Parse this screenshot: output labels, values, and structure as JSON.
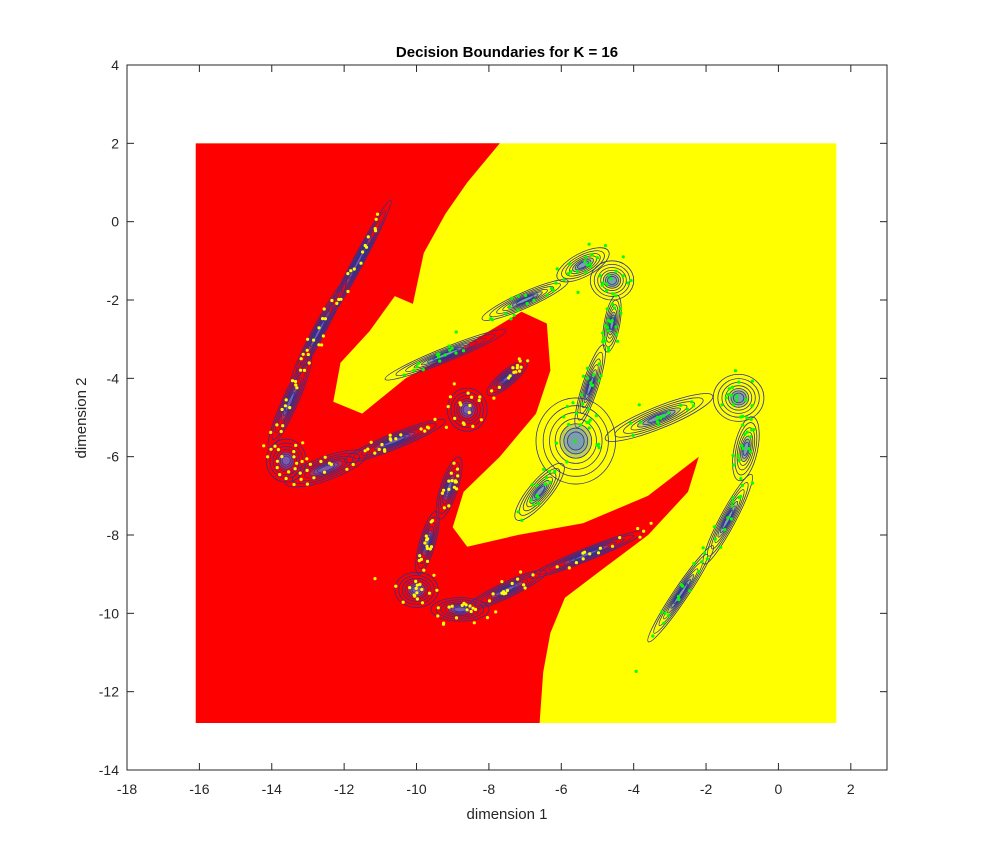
{
  "chart_data": {
    "type": "scatter",
    "title": "Decision Boundaries for K = 16",
    "xlabel": "dimension 1",
    "ylabel": "dimension 2",
    "xlim": [
      -18,
      3
    ],
    "ylim": [
      -14,
      4
    ],
    "x_ticks": [
      -18,
      -16,
      -14,
      -12,
      -10,
      -8,
      -6,
      -4,
      -2,
      0,
      2
    ],
    "y_ticks": [
      4,
      2,
      0,
      -2,
      -4,
      -6,
      -8,
      -10,
      -12,
      -14
    ],
    "x_tick_labels": [
      "-18",
      "-16",
      "-14",
      "-12",
      "-10",
      "-8",
      "-6",
      "-4",
      "-2",
      "0",
      "2"
    ],
    "y_tick_labels": [
      "4",
      "2",
      "0",
      "-2",
      "-4",
      "-6",
      "-8",
      "-10",
      "-12",
      "-14"
    ],
    "grid": false,
    "legend": "none",
    "colors": {
      "class_1_region": "#ff0000",
      "class_2_region": "#ffff00",
      "class_1_points": "#ffff00",
      "class_2_points": "#00ff00",
      "contours": "#30308c",
      "contour_fill": "#4a7cf0"
    },
    "decision_regions": {
      "extent_x": [
        -16.1,
        1.6
      ],
      "extent_y": [
        -12.8,
        2.0
      ],
      "boundary": [
        [
          -7.7,
          2.0
        ],
        [
          -8.6,
          1.0
        ],
        [
          -9.2,
          0.2
        ],
        [
          -9.8,
          -0.8
        ],
        [
          -10.1,
          -2.1
        ],
        [
          -10.6,
          -1.9
        ],
        [
          -11.3,
          -2.8
        ],
        [
          -12.1,
          -3.6
        ],
        [
          -12.3,
          -4.6
        ],
        [
          -11.5,
          -4.9
        ],
        [
          -10.3,
          -4.0
        ],
        [
          -8.9,
          -3.3
        ],
        [
          -7.1,
          -2.3
        ],
        [
          -6.4,
          -2.6
        ],
        [
          -6.3,
          -3.8
        ],
        [
          -6.7,
          -4.9
        ],
        [
          -7.7,
          -6.0
        ],
        [
          -8.7,
          -6.9
        ],
        [
          -9.0,
          -7.8
        ],
        [
          -8.6,
          -8.3
        ],
        [
          -7.2,
          -8.0
        ],
        [
          -5.4,
          -7.7
        ],
        [
          -3.6,
          -7.0
        ],
        [
          -2.2,
          -6.0
        ],
        [
          -2.5,
          -6.9
        ],
        [
          -3.6,
          -8.0
        ],
        [
          -4.9,
          -8.9
        ],
        [
          -5.9,
          -9.6
        ],
        [
          -6.3,
          -10.5
        ],
        [
          -6.5,
          -11.5
        ],
        [
          -6.6,
          -12.8
        ]
      ]
    },
    "series": [
      {
        "name": "class 1",
        "components": [
          {
            "mean": [
              -11.6,
              -1.0
            ],
            "sigma": [
              1.9,
              0.14
            ],
            "angle": 62
          },
          {
            "mean": [
              -12.7,
              -2.8
            ],
            "sigma": [
              1.6,
              0.16
            ],
            "angle": 62
          },
          {
            "mean": [
              -13.5,
              -4.6
            ],
            "sigma": [
              1.4,
              0.2
            ],
            "angle": 66
          },
          {
            "mean": [
              -13.6,
              -6.1
            ],
            "sigma": [
              0.55,
              0.55
            ],
            "angle": 0
          },
          {
            "mean": [
              -12.5,
              -6.3
            ],
            "sigma": [
              1.2,
              0.3
            ],
            "angle": 20
          },
          {
            "mean": [
              -10.6,
              -5.6
            ],
            "sigma": [
              1.5,
              0.2
            ],
            "angle": 22
          },
          {
            "mean": [
              -8.6,
              -4.8
            ],
            "sigma": [
              0.55,
              0.55
            ],
            "angle": 0
          },
          {
            "mean": [
              -7.5,
              -4.0
            ],
            "sigma": [
              0.7,
              0.2
            ],
            "angle": 40
          },
          {
            "mean": [
              -9.1,
              -6.8
            ],
            "sigma": [
              0.9,
              0.22
            ],
            "angle": 72
          },
          {
            "mean": [
              -9.7,
              -8.2
            ],
            "sigma": [
              0.9,
              0.2
            ],
            "angle": 74
          },
          {
            "mean": [
              -10.0,
              -9.4
            ],
            "sigma": [
              0.6,
              0.45
            ],
            "angle": 0
          },
          {
            "mean": [
              -8.8,
              -9.9
            ],
            "sigma": [
              0.8,
              0.3
            ],
            "angle": 0
          },
          {
            "mean": [
              -7.5,
              -9.4
            ],
            "sigma": [
              1.2,
              0.2
            ],
            "angle": 25
          },
          {
            "mean": [
              -5.3,
              -8.5
            ],
            "sigma": [
              1.7,
              0.16
            ],
            "angle": 22
          }
        ]
      },
      {
        "name": "class 2",
        "components": [
          {
            "mean": [
              -9.2,
              -3.4
            ],
            "sigma": [
              1.8,
              0.18
            ],
            "angle": 22
          },
          {
            "mean": [
              -7.0,
              -2.0
            ],
            "sigma": [
              1.3,
              0.2
            ],
            "angle": 24
          },
          {
            "mean": [
              -5.4,
              -1.1
            ],
            "sigma": [
              0.8,
              0.3
            ],
            "angle": 28
          },
          {
            "mean": [
              -4.6,
              -1.5
            ],
            "sigma": [
              0.6,
              0.5
            ],
            "angle": 0
          },
          {
            "mean": [
              -4.6,
              -2.6
            ],
            "sigma": [
              0.8,
              0.2
            ],
            "angle": 80
          },
          {
            "mean": [
              -5.2,
              -4.2
            ],
            "sigma": [
              1.2,
              0.2
            ],
            "angle": 72
          },
          {
            "mean": [
              -5.6,
              -5.6
            ],
            "sigma": [
              1.1,
              1.1
            ],
            "angle": 0
          },
          {
            "mean": [
              -6.6,
              -6.9
            ],
            "sigma": [
              1.0,
              0.28
            ],
            "angle": 50
          },
          {
            "mean": [
              -3.3,
              -5.0
            ],
            "sigma": [
              1.6,
              0.28
            ],
            "angle": 22
          },
          {
            "mean": [
              -1.1,
              -4.5
            ],
            "sigma": [
              0.7,
              0.6
            ],
            "angle": 0
          },
          {
            "mean": [
              -0.9,
              -5.8
            ],
            "sigma": [
              0.9,
              0.3
            ],
            "angle": 78
          },
          {
            "mean": [
              -1.4,
              -7.6
            ],
            "sigma": [
              1.4,
              0.2
            ],
            "angle": 62
          },
          {
            "mean": [
              -2.7,
              -9.5
            ],
            "sigma": [
              1.6,
              0.18
            ],
            "angle": 56
          }
        ]
      }
    ]
  }
}
